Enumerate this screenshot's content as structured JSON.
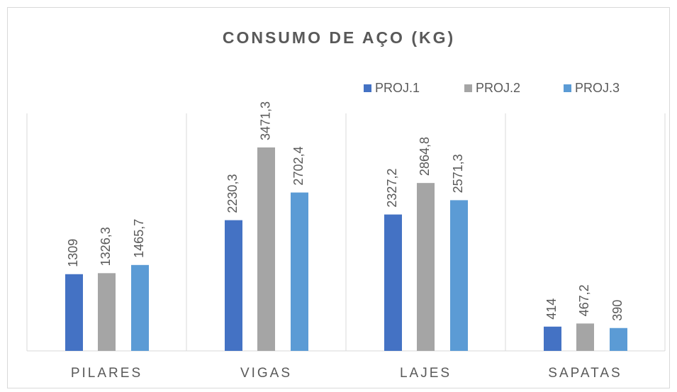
{
  "chart_data": {
    "type": "bar",
    "title": "CONSUMO DE AÇO (KG)",
    "categories": [
      "PILARES",
      "VIGAS",
      "LAJES",
      "SAPATAS"
    ],
    "series": [
      {
        "name": "PROJ.1",
        "color": "#4472c4",
        "values": [
          1309,
          2230.3,
          2327.2,
          414
        ],
        "value_labels": [
          "1309",
          "2230,3",
          "2327,2",
          "414"
        ]
      },
      {
        "name": "PROJ.2",
        "color": "#a5a5a5",
        "values": [
          1326.3,
          3471.3,
          2864.8,
          467.2
        ],
        "value_labels": [
          "1326,3",
          "3471,3",
          "2864,8",
          "467,2"
        ]
      },
      {
        "name": "PROJ.3",
        "color": "#5b9bd5",
        "values": [
          1465.7,
          2702.4,
          2571.3,
          390
        ],
        "value_labels": [
          "1465,7",
          "2702,4",
          "2571,3",
          "390"
        ]
      }
    ],
    "legend": "top-right"
  }
}
